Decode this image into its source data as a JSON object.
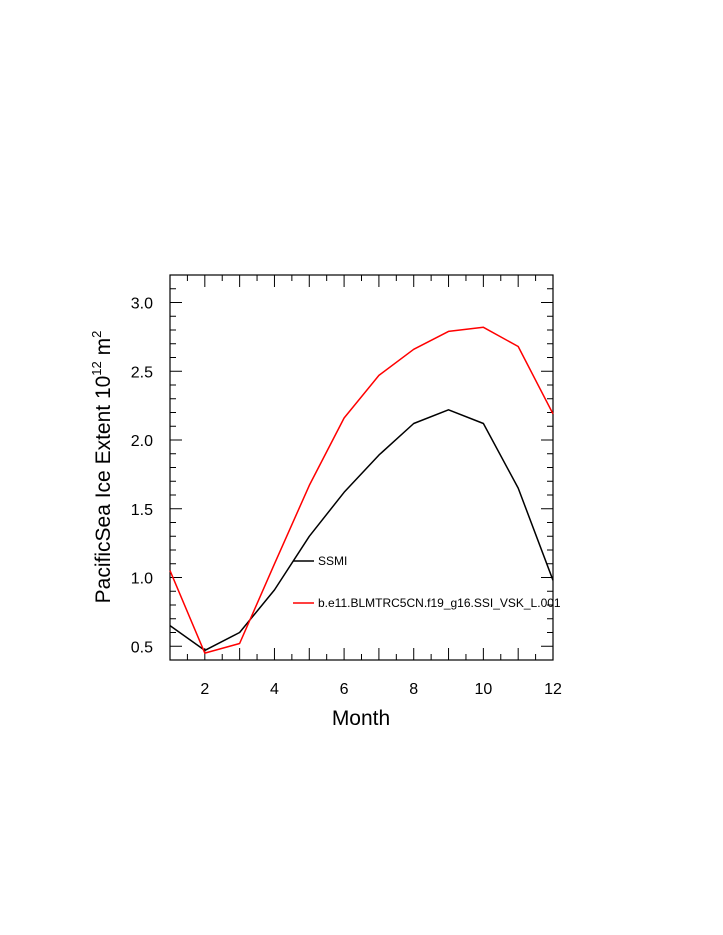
{
  "chart_data": {
    "type": "line",
    "xlabel": "Month",
    "ylabel": "PacificSea Ice Extent 10",
    "ylabel_exponent": "12",
    "ylabel_unit": " m",
    "ylabel_unit_exponent": "2",
    "xlim": [
      1,
      12
    ],
    "ylim": [
      0.4,
      3.2
    ],
    "x_ticks": [
      2,
      4,
      6,
      8,
      10,
      12
    ],
    "y_ticks": [
      0.5,
      1.0,
      1.5,
      2.0,
      2.5,
      3.0
    ],
    "x_tick_labels": [
      "2",
      "4",
      "6",
      "8",
      "10",
      "12"
    ],
    "y_tick_labels": [
      "0.5",
      "1.0",
      "1.5",
      "2.0",
      "2.5",
      "3.0"
    ],
    "x": [
      1,
      2,
      3,
      4,
      5,
      6,
      7,
      8,
      9,
      10,
      11,
      12
    ],
    "grid": false,
    "series": [
      {
        "name": "SSMI",
        "color": "#000000",
        "values": [
          0.65,
          0.47,
          0.6,
          0.91,
          1.3,
          1.62,
          1.89,
          2.12,
          2.22,
          2.12,
          1.65,
          0.98
        ]
      },
      {
        "name": "b.e11.BLMTRC5CN.f19_g16.SSI_VSK_L.001",
        "color": "#ff0000",
        "values": [
          1.05,
          0.45,
          0.52,
          1.1,
          1.67,
          2.16,
          2.47,
          2.66,
          2.79,
          2.82,
          2.68,
          2.19
        ]
      }
    ],
    "legend_placement": "inside-center-right"
  }
}
